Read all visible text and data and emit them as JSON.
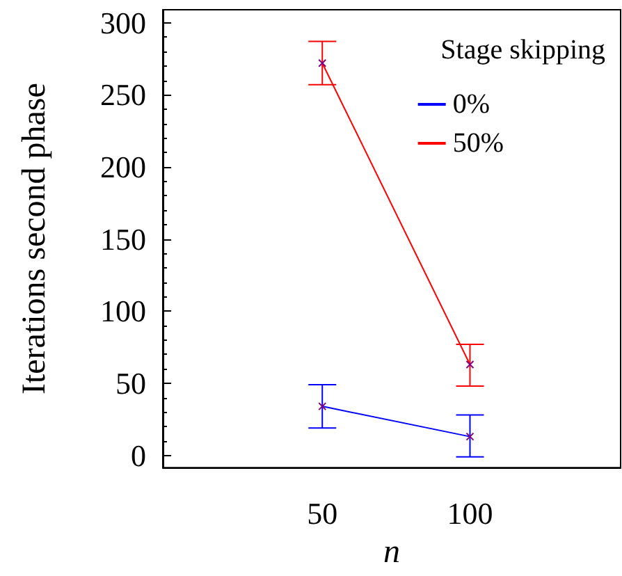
{
  "chart_data": {
    "type": "line",
    "xlabel": "n",
    "ylabel": "Iterations second phase",
    "legend_title": "Stage skipping",
    "legend": "top right",
    "marker": "cross",
    "grid": false,
    "x": [
      50,
      100
    ],
    "xlim": [
      -4,
      151
    ],
    "xticks": [
      50,
      100
    ],
    "ylim": [
      -8.5,
      309
    ],
    "yticks": [
      0,
      50,
      100,
      150,
      200,
      250,
      300
    ],
    "series": [
      {
        "name": "0%",
        "color": "#0000ff",
        "values": [
          34,
          13
        ],
        "errors": [
          [
            19,
            49
          ],
          [
            -1,
            28
          ]
        ]
      },
      {
        "name": "50%",
        "color": "#ff0000",
        "values": [
          272,
          63
        ],
        "errors": [
          [
            257,
            287
          ],
          [
            48,
            77
          ]
        ]
      }
    ]
  }
}
